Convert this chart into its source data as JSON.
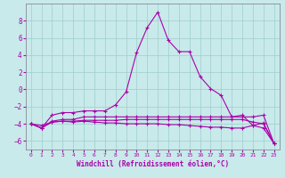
{
  "title": "",
  "xlabel": "Windchill (Refroidissement éolien,°C)",
  "x": [
    0,
    1,
    2,
    3,
    4,
    5,
    6,
    7,
    8,
    9,
    10,
    11,
    12,
    13,
    14,
    15,
    16,
    17,
    18,
    19,
    20,
    21,
    22,
    23
  ],
  "line1": [
    -4.0,
    -4.5,
    -3.0,
    -2.7,
    -2.7,
    -2.5,
    -2.5,
    -2.5,
    -1.8,
    -0.3,
    4.3,
    7.2,
    9.0,
    5.7,
    4.4,
    4.4,
    1.5,
    0.1,
    -0.7,
    -3.2,
    -3.0,
    -4.2,
    -3.9,
    -6.3
  ],
  "line2": [
    -4.0,
    -4.5,
    -3.7,
    -3.5,
    -3.5,
    -3.2,
    -3.2,
    -3.2,
    -3.2,
    -3.2,
    -3.2,
    -3.2,
    -3.2,
    -3.2,
    -3.2,
    -3.2,
    -3.2,
    -3.2,
    -3.2,
    -3.2,
    -3.2,
    -3.2,
    -3.0,
    -6.3
  ],
  "line3": [
    -4.0,
    -4.5,
    -3.8,
    -3.7,
    -3.7,
    -3.6,
    -3.6,
    -3.6,
    -3.6,
    -3.5,
    -3.5,
    -3.5,
    -3.5,
    -3.5,
    -3.5,
    -3.5,
    -3.5,
    -3.5,
    -3.5,
    -3.5,
    -3.5,
    -3.8,
    -4.0,
    -6.3
  ],
  "line4": [
    -4.0,
    -4.2,
    -3.8,
    -3.7,
    -3.8,
    -3.7,
    -3.8,
    -3.9,
    -3.9,
    -4.0,
    -4.0,
    -4.0,
    -4.0,
    -4.1,
    -4.1,
    -4.2,
    -4.3,
    -4.4,
    -4.4,
    -4.5,
    -4.5,
    -4.2,
    -4.5,
    -6.3
  ],
  "bg_color": "#c8eaea",
  "grid_color": "#a0cccc",
  "line_color": "#aa00aa",
  "spine_color": "#888899",
  "ylim": [
    -7,
    10
  ],
  "yticks": [
    -6,
    -4,
    -2,
    0,
    2,
    4,
    6,
    8
  ],
  "xticks": [
    0,
    1,
    2,
    3,
    4,
    5,
    6,
    7,
    8,
    9,
    10,
    11,
    12,
    13,
    14,
    15,
    16,
    17,
    18,
    19,
    20,
    21,
    22,
    23
  ],
  "marker": "+",
  "markersize": 3,
  "linewidth": 0.8
}
